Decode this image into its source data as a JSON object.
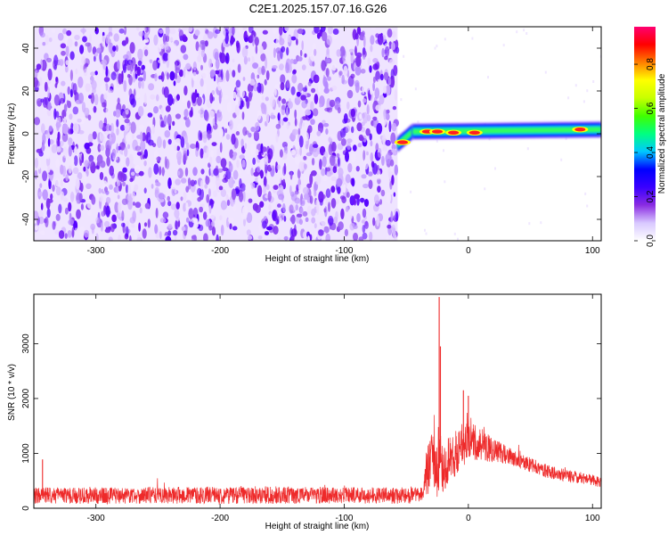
{
  "title": "C2E1.2025.157.07.16.G26",
  "chart_data": [
    {
      "type": "heatmap",
      "xlabel": "Height of straight line (km)",
      "ylabel": "Frequency (Hz)",
      "xlim": [
        -350,
        107
      ],
      "ylim": [
        -50,
        50
      ],
      "x_ticks": [
        -300,
        -200,
        -100,
        0,
        100
      ],
      "y_ticks": [
        -40,
        -20,
        0,
        20,
        40
      ],
      "noise_region_x": [
        -350,
        -57
      ],
      "signal_segments": [
        {
          "x": [
            -57,
            -45
          ],
          "freq": [
            -5,
            1
          ]
        },
        {
          "x": [
            -45,
            107
          ],
          "freq": [
            1,
            2
          ]
        }
      ],
      "peaks": [
        {
          "x": -53,
          "freq": -4,
          "amp": 0.9
        },
        {
          "x": -33,
          "freq": 1,
          "amp": 0.9
        },
        {
          "x": -25,
          "freq": 1,
          "amp": 0.8
        },
        {
          "x": -12,
          "freq": 0.5,
          "amp": 0.9
        },
        {
          "x": 5,
          "freq": 0.5,
          "amp": 0.85
        },
        {
          "x": 90,
          "freq": 2,
          "amp": 0.95
        }
      ],
      "colorbar": {
        "label": "Normalized spectral amplitude",
        "range": [
          0,
          0.97
        ],
        "ticks": [
          "0.0",
          "0.2",
          "0.4",
          "0.6",
          "0.8"
        ],
        "tick_values": [
          0,
          0.2,
          0.4,
          0.6,
          0.8
        ],
        "colors": [
          "#ffffff",
          "#d8c8ff",
          "#8a2be2",
          "#3a00ff",
          "#0000ff",
          "#00c8ff",
          "#00ff80",
          "#40ff00",
          "#c8ff00",
          "#ffff00",
          "#ff8000",
          "#ff0000",
          "#ff0070"
        ]
      }
    },
    {
      "type": "line",
      "xlabel": "Height of straight line (km)",
      "ylabel": "SNR (10 * v/v)",
      "xlim": [
        -350,
        107
      ],
      "ylim": [
        0,
        3900
      ],
      "x_ticks": [
        -300,
        -200,
        -100,
        0,
        100
      ],
      "y_ticks": [
        0,
        1000,
        2000,
        3000
      ],
      "color": "#ee2a2a",
      "series": [
        {
          "x": [
            -350,
            -345,
            -300,
            -250,
            -200,
            -150,
            -100,
            -60,
            -40,
            -36,
            -34,
            -30,
            -25,
            -22,
            -20,
            -15,
            -10,
            -5,
            0,
            5,
            10,
            20,
            30,
            40,
            50,
            60,
            70,
            80,
            90,
            100,
            107
          ],
          "base": [
            230,
            230,
            230,
            235,
            240,
            240,
            235,
            230,
            235,
            240,
            600,
            900,
            700,
            850,
            700,
            900,
            1000,
            1150,
            1250,
            1250,
            1180,
            1050,
            980,
            880,
            780,
            700,
            640,
            590,
            550,
            510,
            470
          ],
          "noise": [
            150,
            150,
            150,
            150,
            160,
            160,
            150,
            150,
            150,
            150,
            450,
            500,
            500,
            500,
            450,
            420,
            420,
            420,
            420,
            380,
            300,
            220,
            170,
            150,
            140,
            130,
            120,
            110,
            110,
            100,
            100
          ]
        }
      ],
      "spikes": [
        {
          "x": -343,
          "y": 890
        },
        {
          "x": -23.5,
          "y": 3850
        },
        {
          "x": -22.5,
          "y": 2950
        },
        {
          "x": -4,
          "y": 2150
        },
        {
          "x": 0,
          "y": 2050
        }
      ]
    }
  ]
}
